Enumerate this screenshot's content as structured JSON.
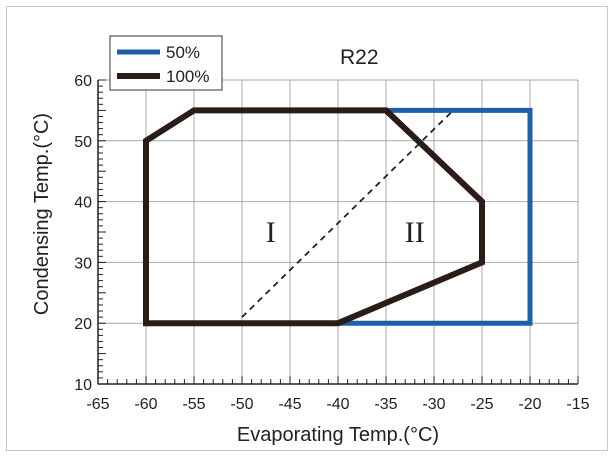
{
  "chart_data": {
    "type": "line",
    "title": "R22",
    "xlabel": "Evaporating Temp.(°C)",
    "ylabel": "Condensing Temp.(°C)",
    "xlim": [
      -65,
      -15
    ],
    "ylim": [
      10,
      60
    ],
    "x_ticks": [
      -65,
      -60,
      -55,
      -50,
      -45,
      -40,
      -35,
      -30,
      -25,
      -20,
      -15
    ],
    "x_tick_labels": [
      "-65",
      "-60",
      "-55",
      "-50",
      "-45",
      "-40",
      "-35",
      "-30",
      "-25",
      "-20",
      "-15"
    ],
    "y_ticks": [
      10,
      20,
      30,
      40,
      50,
      60
    ],
    "y_tick_labels": [
      "10",
      "20",
      "30",
      "40",
      "50",
      "60"
    ],
    "grid": true,
    "legend_position": "top-left",
    "series": [
      {
        "name": "50%",
        "color": "#1f5fa8",
        "points": [
          [
            -60,
            20
          ],
          [
            -60,
            50
          ],
          [
            -55,
            55
          ],
          [
            -20,
            55
          ],
          [
            -20,
            20
          ],
          [
            -60,
            20
          ]
        ]
      },
      {
        "name": "100%",
        "color": "#2a1d18",
        "points": [
          [
            -60,
            20
          ],
          [
            -60,
            50
          ],
          [
            -55,
            55
          ],
          [
            -35,
            55
          ],
          [
            -25,
            40
          ],
          [
            -25,
            30
          ],
          [
            -40,
            20
          ],
          [
            -60,
            20
          ]
        ]
      }
    ],
    "divider": {
      "style": "dashed",
      "color": "#222222",
      "points": [
        [
          -50,
          21
        ],
        [
          -28,
          55
        ]
      ]
    },
    "annotations": [
      {
        "text": "I",
        "x": -47,
        "y": 35
      },
      {
        "text": "II",
        "x": -32,
        "y": 35
      }
    ]
  }
}
